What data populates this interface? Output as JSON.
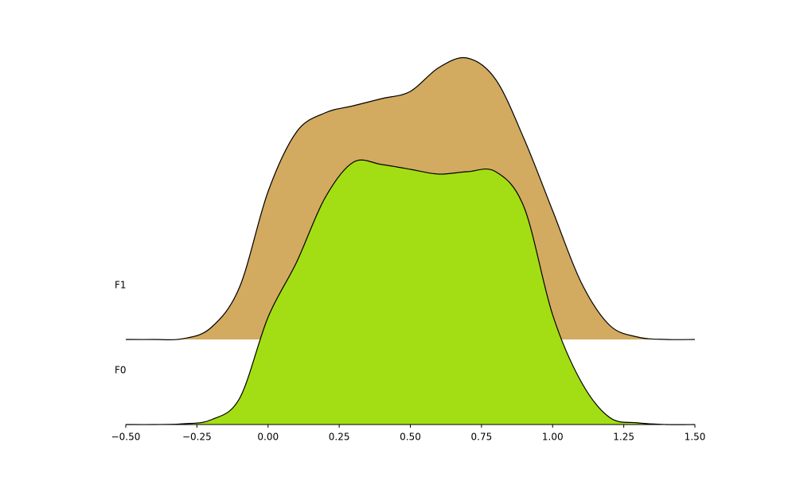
{
  "chart_data": {
    "type": "ridgeline",
    "x": [
      -0.5,
      -0.4,
      -0.3,
      -0.2,
      -0.1,
      0.0,
      0.1,
      0.2,
      0.3,
      0.4,
      0.5,
      0.6,
      0.7,
      0.8,
      0.9,
      1.0,
      1.1,
      1.2,
      1.3,
      1.4,
      1.5
    ],
    "series": [
      {
        "name": "F0",
        "color": "#a3de14",
        "values": [
          0,
          0,
          0.003,
          0.02,
          0.11,
          0.45,
          0.68,
          0.95,
          1.1,
          1.09,
          1.07,
          1.05,
          1.06,
          1.06,
          0.91,
          0.46,
          0.18,
          0.03,
          0.007,
          0,
          0
        ]
      },
      {
        "name": "F1",
        "color": "#d2aa60",
        "values": [
          0,
          0,
          0.003,
          0.05,
          0.22,
          0.62,
          0.87,
          0.95,
          0.98,
          1.01,
          1.04,
          1.14,
          1.18,
          1.09,
          0.84,
          0.54,
          0.24,
          0.06,
          0.01,
          0,
          0
        ]
      }
    ],
    "xlim": [
      -0.5,
      1.5
    ],
    "xticks": [
      {
        "value": -0.5,
        "label": "−0.50"
      },
      {
        "value": -0.25,
        "label": "−0.25"
      },
      {
        "value": 0,
        "label": "0.00"
      },
      {
        "value": 0.25,
        "label": "0.25"
      },
      {
        "value": 0.5,
        "label": "0.50"
      },
      {
        "value": 0.75,
        "label": "0.75"
      },
      {
        "value": 1,
        "label": "1.00"
      },
      {
        "value": 1.25,
        "label": "1.25"
      },
      {
        "value": 1.5,
        "label": "1.50"
      }
    ]
  }
}
